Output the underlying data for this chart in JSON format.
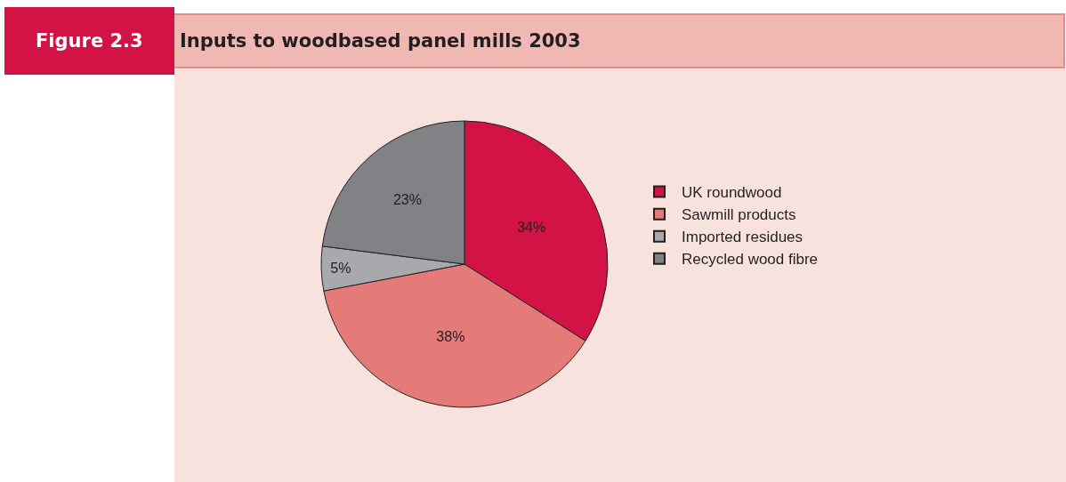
{
  "chart_data": {
    "type": "pie",
    "title": "Inputs to woodbased panel mills 2003",
    "annotations": [
      "Figure 2.3"
    ],
    "categories": [
      "UK roundwood",
      "Sawmill products",
      "Imported residues",
      "Recycled wood fibre"
    ],
    "values": [
      34,
      38,
      5,
      23
    ],
    "value_labels": [
      "34%",
      "38%",
      "5%",
      "23%"
    ],
    "colors": [
      "#d31245",
      "#e57b79",
      "#a7a9ac",
      "#808285"
    ],
    "legend": "right"
  }
}
